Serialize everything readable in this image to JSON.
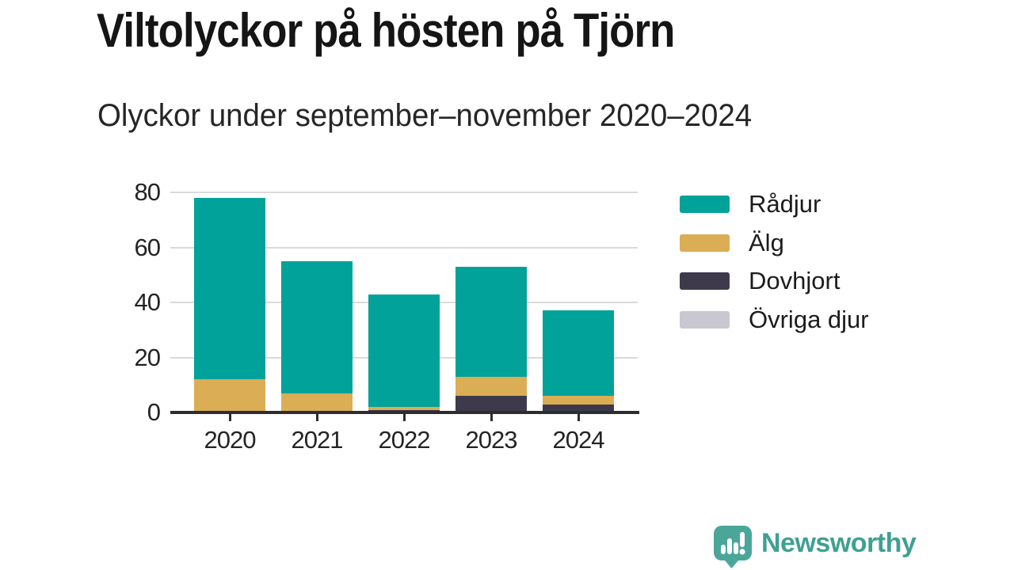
{
  "header": {
    "title": "Viltolyckor på hösten på Tjörn",
    "subtitle": "Olyckor under september–november 2020–2024"
  },
  "chart_data": {
    "type": "bar",
    "stacked": true,
    "categories": [
      "2020",
      "2021",
      "2022",
      "2023",
      "2024"
    ],
    "series": [
      {
        "name": "Rådjur",
        "color": "#00a299",
        "values": [
          66,
          48,
          41,
          40,
          31
        ]
      },
      {
        "name": "Älg",
        "color": "#dbad55",
        "values": [
          12,
          7,
          1,
          7,
          3
        ]
      },
      {
        "name": "Dovhjort",
        "color": "#3e3a4c",
        "values": [
          0,
          0,
          1,
          6,
          3
        ]
      },
      {
        "name": "Övriga djur",
        "color": "#c9c7d2",
        "values": [
          0,
          0,
          0,
          0,
          0
        ]
      }
    ],
    "title": "Viltolyckor på hösten på Tjörn",
    "subtitle": "Olyckor under september–november 2020–2024",
    "xlabel": "",
    "ylabel": "",
    "ylim": [
      0,
      80
    ],
    "yticks": [
      0,
      20,
      40,
      60,
      80
    ],
    "grid": "horizontal",
    "legend_position": "right"
  },
  "colors": {
    "grid": "#dadada",
    "axis": "#2d2d2d",
    "tick_label": "#242424",
    "background": "#ffffff",
    "brand": "#3fa092"
  },
  "footer": {
    "brand": "Newsworthy"
  }
}
